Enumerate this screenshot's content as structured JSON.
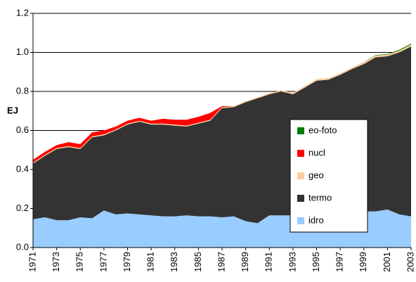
{
  "chart_data": {
    "type": "stacked_area",
    "ylabel": "EJ",
    "x": [
      1971,
      1972,
      1973,
      1974,
      1975,
      1976,
      1977,
      1978,
      1979,
      1980,
      1981,
      1982,
      1983,
      1984,
      1985,
      1986,
      1987,
      1988,
      1989,
      1990,
      1991,
      1992,
      1993,
      1994,
      1995,
      1996,
      1997,
      1998,
      1999,
      2000,
      2001,
      2002,
      2003
    ],
    "xlim": [
      1971,
      2003
    ],
    "xticks": [
      1971,
      1973,
      1975,
      1977,
      1979,
      1981,
      1983,
      1985,
      1987,
      1989,
      1991,
      1993,
      1995,
      1997,
      1999,
      2001,
      2003
    ],
    "ylim": [
      0,
      1.2
    ],
    "yticks": [
      {
        "value": 0,
        "label": "0.0"
      },
      0.2,
      0.4,
      0.6,
      0.8,
      {
        "value": 1,
        "label": "1.0"
      },
      1.2
    ],
    "grid": true,
    "legend": "right",
    "series": [
      {
        "name": "idro",
        "color": "#99ccff",
        "values": [
          0.145,
          0.155,
          0.14,
          0.14,
          0.155,
          0.15,
          0.19,
          0.17,
          0.175,
          0.17,
          0.165,
          0.16,
          0.16,
          0.165,
          0.16,
          0.16,
          0.155,
          0.16,
          0.135,
          0.125,
          0.165,
          0.165,
          0.165,
          0.17,
          0.17,
          0.17,
          0.17,
          0.17,
          0.185,
          0.185,
          0.195,
          0.17,
          0.16
        ]
      },
      {
        "name": "termo",
        "color": "#333333",
        "values": [
          0.285,
          0.315,
          0.365,
          0.375,
          0.35,
          0.415,
          0.385,
          0.43,
          0.455,
          0.475,
          0.465,
          0.47,
          0.465,
          0.455,
          0.475,
          0.49,
          0.56,
          0.56,
          0.61,
          0.64,
          0.62,
          0.635,
          0.62,
          0.65,
          0.685,
          0.69,
          0.715,
          0.745,
          0.755,
          0.79,
          0.785,
          0.83,
          0.87
        ]
      },
      {
        "name": "geo",
        "color": "#ffcc99",
        "values": [
          0.005,
          0.005,
          0.005,
          0.005,
          0.005,
          0.005,
          0.005,
          0.005,
          0.005,
          0.005,
          0.005,
          0.005,
          0.005,
          0.005,
          0.005,
          0.005,
          0.005,
          0.005,
          0.005,
          0.005,
          0.006,
          0.006,
          0.008,
          0.008,
          0.008,
          0.008,
          0.008,
          0.008,
          0.009,
          0.009,
          0.009,
          0.009,
          0.01
        ]
      },
      {
        "name": "nucl",
        "color": "#ff0000",
        "values": [
          0.015,
          0.015,
          0.015,
          0.02,
          0.02,
          0.02,
          0.02,
          0.015,
          0.015,
          0.015,
          0.015,
          0.025,
          0.025,
          0.03,
          0.03,
          0.035,
          0.005,
          0,
          0,
          0,
          0,
          0,
          0,
          0,
          0,
          0,
          0,
          0,
          0,
          0,
          0,
          0,
          0
        ]
      },
      {
        "name": "eo-foto",
        "color": "#008000",
        "values": [
          0,
          0,
          0,
          0,
          0,
          0,
          0,
          0,
          0,
          0,
          0,
          0,
          0,
          0,
          0,
          0,
          0,
          0,
          0,
          0,
          0,
          0,
          0,
          0,
          0,
          0,
          0,
          0,
          0.001,
          0.002,
          0.003,
          0.004,
          0.005
        ]
      }
    ]
  }
}
